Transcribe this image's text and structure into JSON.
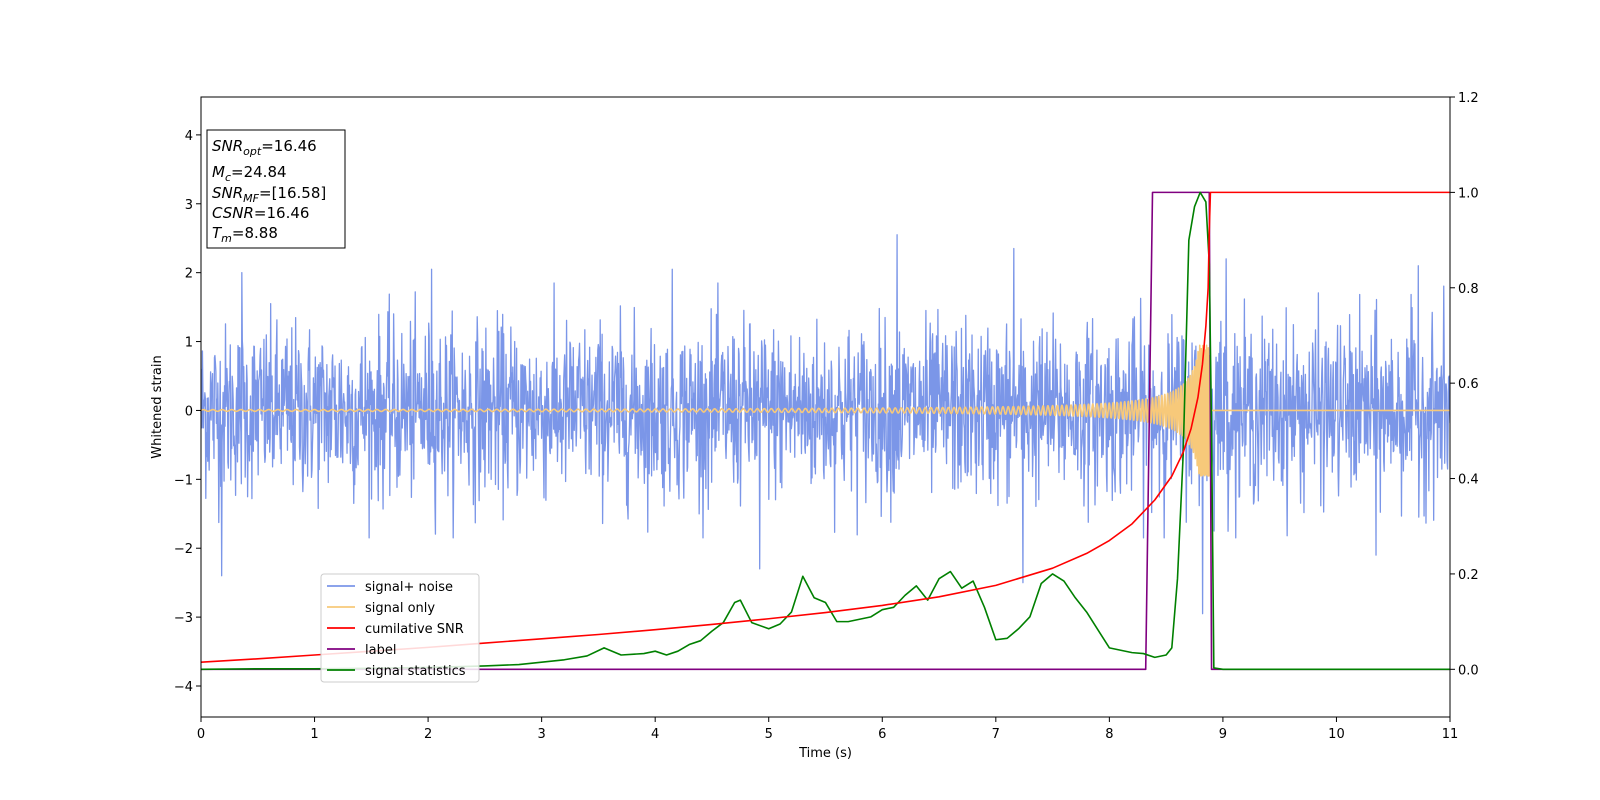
{
  "chart_data": {
    "type": "line",
    "title": "",
    "xlabel": "Time (s)",
    "ylabel": "Whitened strain",
    "y2label": "",
    "xlim": [
      0,
      11
    ],
    "ylim": [
      -4.45,
      4.55
    ],
    "y2lim": [
      -0.1,
      1.2
    ],
    "xticks": [
      "0",
      "1",
      "2",
      "3",
      "4",
      "5",
      "6",
      "7",
      "8",
      "9",
      "10",
      "11"
    ],
    "yticks": [
      "4",
      "3",
      "2",
      "1",
      "0",
      "−1",
      "−2",
      "−3",
      "−4"
    ],
    "y2ticks": [
      "1.2",
      "1.0",
      "0.8",
      "0.6",
      "0.4",
      "0.2",
      "0.0"
    ],
    "grid": false,
    "legend_position": "lower-left",
    "info_box": {
      "lines": [
        {
          "base": "SNR",
          "sub": "opt",
          "value": "=16.46"
        },
        {
          "base": "M",
          "sub": "c",
          "value": "=24.84"
        },
        {
          "base": "SNR",
          "sub": "MF",
          "value": "=[16.58]"
        },
        {
          "base": "CSNR",
          "sub": "",
          "value": "=16.46"
        },
        {
          "base": "T",
          "sub": "m",
          "value": "=8.88"
        }
      ]
    },
    "series": [
      {
        "name": "signal+ noise",
        "color": "#7b96e8",
        "axis": "left",
        "kind": "noise",
        "noise_sigma": 0.62,
        "noise_peaks": [
          [
            0.36,
            2.0
          ],
          [
            0.18,
            -2.4
          ],
          [
            2.03,
            2.05
          ],
          [
            4.15,
            2.05
          ],
          [
            4.92,
            -2.3
          ],
          [
            6.13,
            2.55
          ],
          [
            7.16,
            2.35
          ],
          [
            7.24,
            -2.5
          ],
          [
            8.82,
            -2.95
          ],
          [
            9.03,
            2.2
          ],
          [
            10.72,
            2.1
          ],
          [
            10.35,
            -2.1
          ]
        ],
        "note": "densely sampled noise trace, values approx"
      },
      {
        "name": "signal only",
        "color": "#f7c97a",
        "axis": "left",
        "kind": "chirp",
        "chirp_tc": 8.88,
        "chirp_amp0": 0.012,
        "chirp_ampmax": 0.95
      },
      {
        "name": "cumilative SNR",
        "color": "#ff0000",
        "axis": "right",
        "x": [
          0,
          0.5,
          1,
          1.5,
          2,
          2.5,
          3,
          3.5,
          4,
          4.5,
          5,
          5.5,
          6,
          6.5,
          7,
          7.5,
          7.8,
          8.0,
          8.2,
          8.4,
          8.55,
          8.65,
          8.72,
          8.78,
          8.82,
          8.85,
          8.87,
          8.88,
          8.89,
          9.5,
          10,
          10.5,
          11
        ],
        "y": [
          0.015,
          0.022,
          0.03,
          0.038,
          0.046,
          0.055,
          0.064,
          0.073,
          0.083,
          0.094,
          0.106,
          0.119,
          0.134,
          0.152,
          0.176,
          0.212,
          0.243,
          0.27,
          0.305,
          0.355,
          0.405,
          0.455,
          0.505,
          0.57,
          0.64,
          0.72,
          0.8,
          0.92,
          1.0,
          1.0,
          1.0,
          1.0,
          1.0
        ]
      },
      {
        "name": "label",
        "color": "#800080",
        "axis": "right",
        "x": [
          0,
          8.32,
          8.38,
          8.88,
          8.9,
          11
        ],
        "y": [
          0.0,
          0.0,
          1.0,
          1.0,
          0.0,
          0.0
        ]
      },
      {
        "name": "signal statistics",
        "color": "#008000",
        "axis": "right",
        "x": [
          0,
          0.5,
          1,
          1.5,
          2,
          2.5,
          2.8,
          3.0,
          3.2,
          3.4,
          3.55,
          3.7,
          3.9,
          4.0,
          4.1,
          4.2,
          4.3,
          4.4,
          4.5,
          4.6,
          4.7,
          4.75,
          4.85,
          5.0,
          5.1,
          5.2,
          5.3,
          5.4,
          5.5,
          5.6,
          5.7,
          5.9,
          6.0,
          6.1,
          6.2,
          6.3,
          6.4,
          6.5,
          6.6,
          6.7,
          6.8,
          6.9,
          7.0,
          7.1,
          7.2,
          7.3,
          7.4,
          7.5,
          7.6,
          7.7,
          7.8,
          8.0,
          8.2,
          8.3,
          8.4,
          8.5,
          8.55,
          8.6,
          8.65,
          8.7,
          8.75,
          8.8,
          8.85,
          8.88,
          8.9,
          8.92,
          9.0,
          9.5,
          10,
          10.5,
          11
        ],
        "y": [
          0.0,
          0.001,
          0.001,
          0.002,
          0.004,
          0.007,
          0.01,
          0.015,
          0.02,
          0.028,
          0.045,
          0.03,
          0.033,
          0.038,
          0.03,
          0.038,
          0.052,
          0.06,
          0.08,
          0.098,
          0.14,
          0.145,
          0.098,
          0.085,
          0.095,
          0.12,
          0.195,
          0.15,
          0.14,
          0.1,
          0.1,
          0.11,
          0.125,
          0.13,
          0.155,
          0.175,
          0.145,
          0.19,
          0.205,
          0.17,
          0.185,
          0.13,
          0.062,
          0.065,
          0.085,
          0.11,
          0.18,
          0.2,
          0.185,
          0.15,
          0.12,
          0.045,
          0.035,
          0.033,
          0.025,
          0.03,
          0.045,
          0.19,
          0.45,
          0.9,
          0.97,
          1.0,
          0.98,
          0.85,
          0.5,
          0.003,
          0.0,
          0.0,
          0.0,
          0.0,
          0.0
        ]
      }
    ]
  }
}
